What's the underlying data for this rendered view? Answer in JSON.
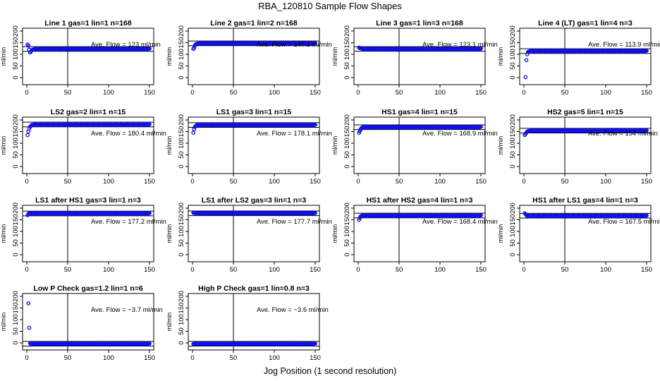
{
  "figure": {
    "title": "RBA_120810  Sample Flow Shapes",
    "xlabel": "Jog Position (1 second resolution)"
  },
  "chart_data": [
    {
      "type": "scatter",
      "title": "Line 1 gas=1 lin=1 n=168",
      "ylabel": "ml/min",
      "xlim": [
        0,
        150
      ],
      "ylim": [
        0,
        200
      ],
      "xticks": [
        0,
        50,
        100,
        150
      ],
      "yticks": [
        0,
        50,
        100,
        150,
        200
      ],
      "avg_flow": 123,
      "annotation": "Ave. Flow =  123  ml/min",
      "vline_x": 50,
      "series": [
        {
          "points": [
            [
              1,
              142
            ],
            [
              2,
              137
            ],
            [
              3,
              120
            ],
            [
              4,
              108
            ],
            [
              5,
              112
            ],
            [
              6,
              117
            ],
            [
              7,
              120
            ],
            [
              8,
              121
            ],
            [
              9,
              122
            ],
            [
              10,
              123
            ]
          ],
          "steady": {
            "from": 11,
            "to": 150,
            "value": 123
          }
        }
      ]
    },
    {
      "type": "scatter",
      "title": "Line 2 gas=1 lin=2 n=168",
      "ylabel": "ml/min",
      "xlim": [
        0,
        150
      ],
      "ylim": [
        0,
        200
      ],
      "xticks": [
        0,
        50,
        100,
        150
      ],
      "yticks": [
        0,
        50,
        100,
        150,
        200
      ],
      "avg_flow": 147.1,
      "annotation": "Ave. Flow =  147.1  ml/min",
      "vline_x": 50,
      "series": [
        {
          "points": [
            [
              1,
              123
            ],
            [
              2,
              128
            ],
            [
              3,
              138
            ],
            [
              4,
              143
            ],
            [
              5,
              145
            ],
            [
              6,
              146
            ],
            [
              7,
              147
            ]
          ],
          "steady": {
            "from": 8,
            "to": 150,
            "value": 147
          }
        }
      ]
    },
    {
      "type": "scatter",
      "title": "Line 3 gas=1 lin=3 n=168",
      "ylabel": "ml/min",
      "xlim": [
        0,
        150
      ],
      "ylim": [
        0,
        200
      ],
      "xticks": [
        0,
        50,
        100,
        150
      ],
      "yticks": [
        0,
        50,
        100,
        150,
        200
      ],
      "avg_flow": 123.1,
      "annotation": "Ave. Flow =  123.1  ml/min",
      "vline_x": 50,
      "series": [
        {
          "points": [
            [
              1,
              129
            ],
            [
              2,
              127
            ],
            [
              3,
              126
            ],
            [
              4,
              125
            ],
            [
              5,
              124
            ]
          ],
          "steady": {
            "from": 6,
            "to": 150,
            "value": 123
          }
        }
      ]
    },
    {
      "type": "scatter",
      "title": "Line 4 (LT) gas=1 lin=4 n=3",
      "ylabel": "ml/min",
      "xlim": [
        0,
        150
      ],
      "ylim": [
        0,
        200
      ],
      "xticks": [
        0,
        50,
        100,
        150
      ],
      "yticks": [
        0,
        50,
        100,
        150,
        200
      ],
      "avg_flow": 113.9,
      "annotation": "Ave. Flow =  113.9  ml/min",
      "vline_x": 50,
      "series": [
        {
          "points": [
            [
              2,
              2
            ],
            [
              3,
              75
            ],
            [
              4,
              100
            ],
            [
              5,
              110
            ],
            [
              6,
              112
            ],
            [
              7,
              113
            ]
          ],
          "steady": {
            "from": 8,
            "to": 150,
            "value": 114
          }
        }
      ]
    },
    {
      "type": "scatter",
      "title": "LS2 gas=2 lin=1 n=15",
      "ylabel": "ml/min",
      "xlim": [
        0,
        150
      ],
      "ylim": [
        0,
        200
      ],
      "xticks": [
        0,
        50,
        100,
        150
      ],
      "yticks": [
        0,
        50,
        100,
        150,
        200
      ],
      "avg_flow": 180.4,
      "annotation": "Ave. Flow =  180.4  ml/min",
      "vline_x": 50,
      "series": [
        {
          "points": [
            [
              1,
              135
            ],
            [
              2,
              150
            ],
            [
              3,
              163
            ],
            [
              4,
              170
            ],
            [
              5,
              175
            ],
            [
              6,
              178
            ],
            [
              7,
              179
            ]
          ],
          "steady": {
            "from": 8,
            "to": 150,
            "value": 180
          }
        }
      ]
    },
    {
      "type": "scatter",
      "title": "LS1 gas=3 lin=1 n=15",
      "ylabel": "ml/min",
      "xlim": [
        0,
        150
      ],
      "ylim": [
        0,
        200
      ],
      "xticks": [
        0,
        50,
        100,
        150
      ],
      "yticks": [
        0,
        50,
        100,
        150,
        200
      ],
      "avg_flow": 178.1,
      "annotation": "Ave. Flow =  178.1  ml/min",
      "vline_x": 50,
      "series": [
        {
          "points": [
            [
              1,
              145
            ],
            [
              2,
              160
            ],
            [
              3,
              170
            ],
            [
              4,
              175
            ],
            [
              5,
              177
            ]
          ],
          "steady": {
            "from": 6,
            "to": 150,
            "value": 178
          }
        }
      ]
    },
    {
      "type": "scatter",
      "title": "HS1 gas=4 lin=1 n=15",
      "ylabel": "ml/min",
      "xlim": [
        0,
        150
      ],
      "ylim": [
        0,
        200
      ],
      "xticks": [
        0,
        50,
        100,
        150
      ],
      "yticks": [
        0,
        50,
        100,
        150,
        200
      ],
      "avg_flow": 168.9,
      "annotation": "Ave. Flow =  168.9  ml/min",
      "vline_x": 50,
      "series": [
        {
          "points": [
            [
              1,
              145
            ],
            [
              2,
              152
            ],
            [
              3,
              160
            ],
            [
              4,
              165
            ],
            [
              5,
              167
            ]
          ],
          "steady": {
            "from": 6,
            "to": 150,
            "value": 169
          }
        }
      ]
    },
    {
      "type": "scatter",
      "title": "HS2 gas=5 lin=1 n=15",
      "ylabel": "ml/min",
      "xlim": [
        0,
        150
      ],
      "ylim": [
        0,
        200
      ],
      "xticks": [
        0,
        50,
        100,
        150
      ],
      "yticks": [
        0,
        50,
        100,
        150,
        200
      ],
      "avg_flow": 154,
      "annotation": "Ave. Flow =  154  ml/min",
      "vline_x": 50,
      "series": [
        {
          "points": [
            [
              1,
              135
            ],
            [
              2,
              140
            ],
            [
              3,
              145
            ],
            [
              4,
              150
            ],
            [
              5,
              152
            ],
            [
              6,
              153
            ]
          ],
          "steady": {
            "from": 7,
            "to": 150,
            "value": 154
          }
        }
      ]
    },
    {
      "type": "scatter",
      "title": "LS1 after HS1 gas=3 lin=1 n=3",
      "ylabel": "ml/min",
      "xlim": [
        0,
        150
      ],
      "ylim": [
        0,
        200
      ],
      "xticks": [
        0,
        50,
        100,
        150
      ],
      "yticks": [
        0,
        50,
        100,
        150,
        200
      ],
      "avg_flow": 177.2,
      "annotation": "Ave. Flow =  177.2  ml/min",
      "vline_x": 50,
      "series": [
        {
          "points": [
            [
              1,
              170
            ],
            [
              2,
              175
            ]
          ],
          "steady": {
            "from": 3,
            "to": 150,
            "value": 177
          }
        }
      ]
    },
    {
      "type": "scatter",
      "title": "LS1 after LS2 gas=3 lin=1 n=3",
      "ylabel": "ml/min",
      "xlim": [
        0,
        150
      ],
      "ylim": [
        0,
        200
      ],
      "xticks": [
        0,
        50,
        100,
        150
      ],
      "yticks": [
        0,
        50,
        100,
        150,
        200
      ],
      "avg_flow": 177.7,
      "annotation": "Ave. Flow =  177.7  ml/min",
      "vline_x": 50,
      "series": [
        {
          "points": [
            [
              1,
              180
            ],
            [
              2,
              179
            ]
          ],
          "steady": {
            "from": 3,
            "to": 150,
            "value": 178
          }
        }
      ]
    },
    {
      "type": "scatter",
      "title": "HS1 after HS2 gas=4 lin=1 n=3",
      "ylabel": "ml/min",
      "xlim": [
        0,
        150
      ],
      "ylim": [
        0,
        200
      ],
      "xticks": [
        0,
        50,
        100,
        150
      ],
      "yticks": [
        0,
        50,
        100,
        150,
        200
      ],
      "avg_flow": 168.4,
      "annotation": "Ave. Flow =  168.4  ml/min",
      "vline_x": 50,
      "series": [
        {
          "points": [
            [
              1,
              150
            ],
            [
              2,
              158
            ],
            [
              3,
              165
            ]
          ],
          "steady": {
            "from": 4,
            "to": 150,
            "value": 168
          }
        }
      ]
    },
    {
      "type": "scatter",
      "title": "HS1 after LS1 gas=4 lin=1 n=3",
      "ylabel": "ml/min",
      "xlim": [
        0,
        150
      ],
      "ylim": [
        0,
        200
      ],
      "xticks": [
        0,
        50,
        100,
        150
      ],
      "yticks": [
        0,
        50,
        100,
        150,
        200
      ],
      "avg_flow": 167.5,
      "annotation": "Ave. Flow =  167.5  ml/min",
      "vline_x": 50,
      "series": [
        {
          "points": [
            [
              1,
              178
            ],
            [
              2,
              174
            ],
            [
              3,
              170
            ]
          ],
          "steady": {
            "from": 4,
            "to": 150,
            "value": 167
          }
        }
      ]
    },
    {
      "type": "scatter",
      "title": "Low P Check gas=1.2 lin=1 n=6",
      "ylabel": "ml/min",
      "xlim": [
        0,
        150
      ],
      "ylim": [
        0,
        200
      ],
      "xticks": [
        0,
        50,
        100,
        150
      ],
      "yticks": [
        0,
        50,
        100,
        150,
        200
      ],
      "avg_flow": -3.7,
      "annotation": "Ave. Flow =  −3.7  ml/min",
      "vline_x": 50,
      "series": [
        {
          "points": [
            [
              2,
              170
            ],
            [
              3,
              65
            ],
            [
              4,
              -2
            ]
          ],
          "steady": {
            "from": 5,
            "to": 150,
            "value": -4
          }
        }
      ]
    },
    {
      "type": "scatter",
      "title": "High P Check gas=1 lin=0.8 n=3",
      "ylabel": "ml/min",
      "xlim": [
        0,
        150
      ],
      "ylim": [
        0,
        200
      ],
      "xticks": [
        0,
        50,
        100,
        150
      ],
      "yticks": [
        0,
        50,
        100,
        150,
        200
      ],
      "avg_flow": -3.6,
      "annotation": "Ave. Flow =  −3.6  ml/min",
      "vline_x": 50,
      "series": [
        {
          "points": [],
          "steady": {
            "from": 1,
            "to": 150,
            "value": -4
          }
        }
      ]
    }
  ]
}
